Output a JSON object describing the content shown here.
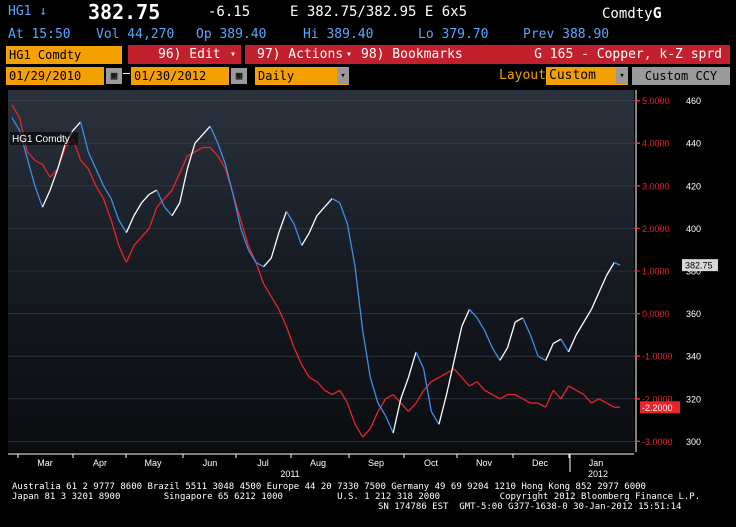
{
  "header": {
    "ticker": "HG1 ↓",
    "last_price": "382.75",
    "change": "-6.15",
    "quote": "E 382.75/382.95 E  6x5",
    "source_code": "Comdty",
    "source_letter": "G",
    "time": "At 15:50",
    "volume": "Vol 44,270",
    "open": "Op 389.40",
    "high": "Hi 389.40",
    "low": "Lo 379.70",
    "prev": "Prev 388.90"
  },
  "toolbar": {
    "security": "HG1 Comdty",
    "edit": "96) Edit",
    "actions": "97) Actions",
    "bookmarks": "98) Bookmarks",
    "chart_title": "G 165 - Copper, k-Z sprd",
    "start_date": "01/29/2010",
    "end_date": "01/30/2012",
    "period": "Daily",
    "layout_label": "Layout",
    "layout_value": "Custom",
    "ccy": "Custom CCY"
  },
  "chart_data": {
    "type": "line",
    "legend_label": "HG1 Comdty",
    "x_months": [
      "Mar",
      "Apr",
      "May",
      "Jun",
      "Jul",
      "Aug",
      "Sep",
      "Oct",
      "Nov",
      "Dec",
      "Jan"
    ],
    "x_years": [
      "2011",
      "2012"
    ],
    "right_axis": {
      "ticks": [
        460,
        440,
        420,
        400,
        380,
        360,
        340,
        320,
        300
      ],
      "ylim": [
        295,
        465
      ]
    },
    "left_axis": {
      "ticks": [
        "5.0000",
        "4.0000",
        "3.0000",
        "2.0000",
        "1.0000",
        "0.0000",
        "-1.0000",
        "-2.0000",
        "-3.0000"
      ],
      "ylim": [
        -3.25,
        5.25
      ]
    },
    "last_price_label": "382.75",
    "last_spread_label": "-2.2000",
    "series": [
      {
        "color": "#ffffff",
        "points": [
          [
            0,
            452
          ],
          [
            4,
            446
          ],
          [
            8,
            433
          ],
          [
            12,
            420
          ],
          [
            16,
            410
          ],
          [
            20,
            418
          ],
          [
            24,
            428
          ],
          [
            28,
            440
          ],
          [
            32,
            446
          ],
          [
            36,
            450
          ],
          [
            40,
            436
          ],
          [
            44,
            428
          ],
          [
            48,
            420
          ],
          [
            52,
            414
          ],
          [
            56,
            404
          ],
          [
            60,
            398
          ],
          [
            64,
            406
          ],
          [
            68,
            412
          ],
          [
            72,
            416
          ],
          [
            76,
            418
          ],
          [
            80,
            410
          ],
          [
            84,
            406
          ],
          [
            88,
            412
          ],
          [
            92,
            428
          ],
          [
            96,
            440
          ],
          [
            100,
            444
          ],
          [
            104,
            448
          ],
          [
            108,
            440
          ],
          [
            112,
            430
          ],
          [
            116,
            416
          ],
          [
            120,
            400
          ],
          [
            124,
            390
          ],
          [
            128,
            384
          ],
          [
            132,
            382
          ],
          [
            136,
            386
          ],
          [
            140,
            398
          ],
          [
            144,
            408
          ],
          [
            148,
            402
          ],
          [
            152,
            392
          ],
          [
            156,
            398
          ],
          [
            160,
            406
          ],
          [
            164,
            410
          ],
          [
            168,
            414
          ],
          [
            172,
            412
          ],
          [
            176,
            402
          ],
          [
            180,
            382
          ],
          [
            184,
            352
          ],
          [
            188,
            330
          ],
          [
            192,
            318
          ],
          [
            196,
            312
          ],
          [
            200,
            304
          ],
          [
            204,
            320
          ],
          [
            208,
            330
          ],
          [
            212,
            342
          ],
          [
            216,
            334
          ],
          [
            220,
            314
          ],
          [
            224,
            308
          ],
          [
            228,
            322
          ],
          [
            232,
            338
          ],
          [
            236,
            354
          ],
          [
            240,
            362
          ],
          [
            244,
            358
          ],
          [
            248,
            352
          ],
          [
            252,
            344
          ],
          [
            256,
            338
          ],
          [
            260,
            344
          ],
          [
            264,
            356
          ],
          [
            268,
            358
          ],
          [
            272,
            350
          ],
          [
            276,
            340
          ],
          [
            280,
            338
          ],
          [
            284,
            346
          ],
          [
            288,
            348
          ],
          [
            292,
            342
          ],
          [
            296,
            350
          ],
          [
            300,
            356
          ],
          [
            304,
            362
          ],
          [
            308,
            370
          ],
          [
            312,
            378
          ],
          [
            316,
            384
          ],
          [
            319,
            382.75
          ]
        ]
      },
      {
        "color": "#e8242c",
        "points": [
          [
            0,
            4.9
          ],
          [
            4,
            4.6
          ],
          [
            8,
            3.8
          ],
          [
            12,
            3.6
          ],
          [
            16,
            3.5
          ],
          [
            20,
            3.2
          ],
          [
            24,
            3.4
          ],
          [
            28,
            3.9
          ],
          [
            32,
            4.1
          ],
          [
            36,
            3.6
          ],
          [
            40,
            3.4
          ],
          [
            44,
            3.0
          ],
          [
            48,
            2.7
          ],
          [
            52,
            2.2
          ],
          [
            56,
            1.6
          ],
          [
            60,
            1.2
          ],
          [
            64,
            1.6
          ],
          [
            68,
            1.8
          ],
          [
            72,
            2.0
          ],
          [
            76,
            2.5
          ],
          [
            80,
            2.7
          ],
          [
            84,
            2.9
          ],
          [
            88,
            3.3
          ],
          [
            92,
            3.7
          ],
          [
            96,
            3.8
          ],
          [
            100,
            3.9
          ],
          [
            104,
            3.9
          ],
          [
            108,
            3.7
          ],
          [
            112,
            3.4
          ],
          [
            116,
            2.8
          ],
          [
            120,
            2.2
          ],
          [
            124,
            1.6
          ],
          [
            128,
            1.2
          ],
          [
            132,
            0.7
          ],
          [
            136,
            0.4
          ],
          [
            140,
            0.1
          ],
          [
            144,
            -0.3
          ],
          [
            148,
            -0.8
          ],
          [
            152,
            -1.2
          ],
          [
            156,
            -1.5
          ],
          [
            160,
            -1.6
          ],
          [
            164,
            -1.8
          ],
          [
            168,
            -1.9
          ],
          [
            172,
            -1.8
          ],
          [
            176,
            -2.1
          ],
          [
            180,
            -2.6
          ],
          [
            184,
            -2.9
          ],
          [
            188,
            -2.7
          ],
          [
            192,
            -2.3
          ],
          [
            196,
            -2.0
          ],
          [
            200,
            -1.9
          ],
          [
            204,
            -2.1
          ],
          [
            208,
            -2.3
          ],
          [
            212,
            -2.1
          ],
          [
            216,
            -1.8
          ],
          [
            220,
            -1.6
          ],
          [
            224,
            -1.5
          ],
          [
            228,
            -1.4
          ],
          [
            232,
            -1.3
          ],
          [
            236,
            -1.5
          ],
          [
            240,
            -1.7
          ],
          [
            244,
            -1.6
          ],
          [
            248,
            -1.8
          ],
          [
            252,
            -1.9
          ],
          [
            256,
            -2.0
          ],
          [
            260,
            -1.9
          ],
          [
            264,
            -1.9
          ],
          [
            268,
            -2.0
          ],
          [
            272,
            -2.1
          ],
          [
            276,
            -2.1
          ],
          [
            280,
            -2.2
          ],
          [
            284,
            -1.8
          ],
          [
            288,
            -2.0
          ],
          [
            292,
            -1.7
          ],
          [
            296,
            -1.8
          ],
          [
            300,
            -1.9
          ],
          [
            304,
            -2.1
          ],
          [
            308,
            -2.0
          ],
          [
            312,
            -2.1
          ],
          [
            316,
            -2.2
          ],
          [
            319,
            -2.2
          ]
        ]
      }
    ]
  },
  "footer": {
    "line1": "Australia 61 2 9777 8600 Brazil 5511 3048 4500 Europe 44 20 7330 7500 Germany 49 69 9204 1210 Hong Kong 852 2977 6000",
    "line2a": "Japan 81 3 3201 8900        Singapore 65 6212 1000          U.S. 1 212 318 2000           Copyright 2012 Bloomberg Finance L.P.",
    "line3": "SN 174786 EST  GMT-5:00 G377-1638-0 30-Jan-2012 15:51:14"
  }
}
